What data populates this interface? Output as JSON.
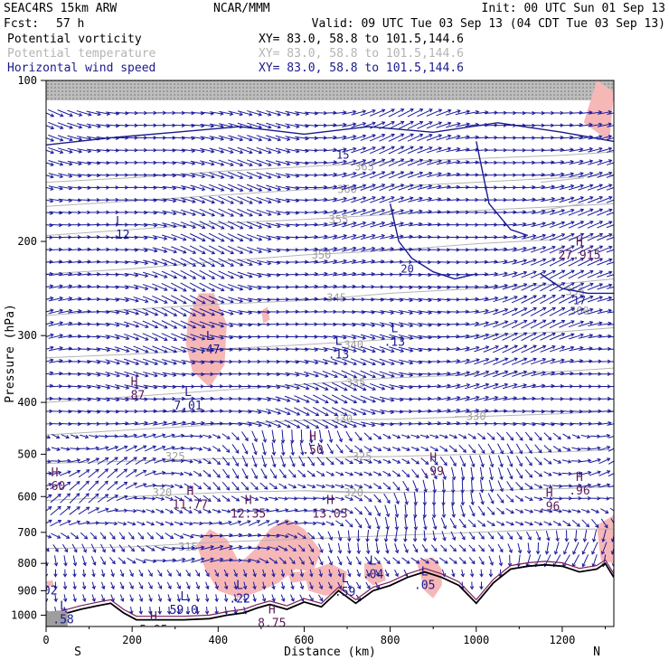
{
  "header": {
    "model": "SEAC4RS 15km ARW",
    "org": "NCAR/MMM",
    "init": "Init: 00 UTC Sun 01 Sep 13",
    "fcst_label": "Fcst:",
    "fcst_value": "57 h",
    "valid": "Valid: 09 UTC Tue 03 Sep 13 (04 CDT Tue 03 Sep 13)",
    "fields": [
      {
        "name": "Potential vorticity",
        "xy": "XY=  83.0, 58.8 to 101.5,144.6",
        "color": "#000000"
      },
      {
        "name": "Potential temperature",
        "xy": "XY=  83.0, 58.8 to 101.5,144.6",
        "color": "#b4b4b4"
      },
      {
        "name": "Horizontal wind speed",
        "xy": "XY=  83.0, 58.8 to 101.5,144.6",
        "color": "#1a1a8c"
      }
    ]
  },
  "chart_data": {
    "type": "cross-section",
    "xlabel": "Distance (km)",
    "ylabel": "Pressure (hPa)",
    "xlim": [
      0,
      1320
    ],
    "ylim": [
      100,
      1050
    ],
    "y_log": true,
    "x_ticks": [
      "0",
      "200",
      "400",
      "600",
      "800",
      "1000",
      "1200"
    ],
    "x_tick_values": [
      0,
      200,
      400,
      600,
      800,
      1000,
      1200
    ],
    "y_ticks": [
      "100",
      "200",
      "300",
      "400",
      "500",
      "600",
      "700",
      "800",
      "900",
      "1000"
    ],
    "y_tick_values": [
      100,
      200,
      300,
      400,
      500,
      600,
      700,
      800,
      900,
      1000
    ],
    "end_labels": {
      "left": "S",
      "right": "N"
    },
    "theta_contours": [
      {
        "label": "315",
        "points": [
          [
            0,
            750
          ],
          [
            200,
            745
          ],
          [
            400,
            730
          ],
          [
            600,
            720
          ],
          [
            800,
            710
          ],
          [
            1000,
            700
          ],
          [
            1200,
            690
          ],
          [
            1320,
            690
          ]
        ],
        "label_at": [
          330,
          745
        ]
      },
      {
        "label": "320",
        "points": [
          [
            0,
            610
          ],
          [
            200,
            600
          ],
          [
            400,
            590
          ],
          [
            600,
            585
          ],
          [
            800,
            590
          ],
          [
            1000,
            585
          ],
          [
            1200,
            580
          ],
          [
            1320,
            575
          ]
        ],
        "label_at": [
          270,
          590
        ]
      },
      {
        "label": "320",
        "points": [
          [
            600,
            585
          ],
          [
            700,
            590
          ],
          [
            800,
            590
          ]
        ],
        "label_at": [
          715,
          590
        ]
      },
      {
        "label": "325",
        "points": [
          [
            0,
            520
          ],
          [
            200,
            515
          ],
          [
            400,
            510
          ],
          [
            600,
            508
          ],
          [
            800,
            505
          ],
          [
            1000,
            500
          ],
          [
            1200,
            495
          ],
          [
            1320,
            490
          ]
        ],
        "label_at": [
          300,
          505
        ]
      },
      {
        "label": "325",
        "points": [
          [
            700,
            505
          ],
          [
            800,
            505
          ]
        ],
        "label_at": [
          735,
          505
        ]
      },
      {
        "label": "330",
        "points": [
          [
            0,
            460
          ],
          [
            200,
            450
          ],
          [
            400,
            440
          ],
          [
            600,
            432
          ],
          [
            800,
            430
          ],
          [
            1000,
            425
          ],
          [
            1200,
            420
          ],
          [
            1320,
            415
          ]
        ],
        "label_at": [
          690,
          430
        ]
      },
      {
        "label": "330",
        "points": [
          [
            950,
            425
          ],
          [
            1000,
            425
          ]
        ],
        "label_at": [
          1000,
          425
        ]
      },
      {
        "label": "335",
        "points": [
          [
            0,
            400
          ],
          [
            200,
            390
          ],
          [
            400,
            380
          ],
          [
            600,
            370
          ],
          [
            800,
            360
          ],
          [
            1000,
            355
          ],
          [
            1200,
            350
          ],
          [
            1320,
            345
          ]
        ],
        "label_at": [
          720,
          368
        ]
      },
      {
        "label": "340",
        "points": [
          [
            0,
            330
          ],
          [
            200,
            325
          ],
          [
            400,
            318
          ],
          [
            600,
            312
          ],
          [
            800,
            305
          ],
          [
            1000,
            300
          ],
          [
            1200,
            295
          ],
          [
            1320,
            290
          ]
        ],
        "label_at": [
          715,
          312
        ]
      },
      {
        "label": "345",
        "points": [
          [
            0,
            275
          ],
          [
            200,
            268
          ],
          [
            400,
            262
          ],
          [
            600,
            258
          ],
          [
            800,
            250
          ],
          [
            1000,
            245
          ],
          [
            1200,
            240
          ],
          [
            1320,
            235
          ]
        ],
        "label_at": [
          675,
          255
        ]
      },
      {
        "label": "350",
        "points": [
          [
            0,
            230
          ],
          [
            200,
            225
          ],
          [
            400,
            218
          ],
          [
            600,
            212
          ],
          [
            800,
            208
          ],
          [
            1000,
            202
          ],
          [
            1200,
            198
          ],
          [
            1320,
            195
          ]
        ],
        "label_at": [
          640,
          212
        ]
      },
      {
        "label": "355",
        "points": [
          [
            0,
            195
          ],
          [
            200,
            190
          ],
          [
            400,
            185
          ],
          [
            600,
            182
          ],
          [
            800,
            178
          ],
          [
            1000,
            175
          ],
          [
            1200,
            172
          ],
          [
            1320,
            170
          ]
        ],
        "label_at": [
          680,
          182
        ]
      },
      {
        "label": "360",
        "points": [
          [
            0,
            172
          ],
          [
            200,
            168
          ],
          [
            400,
            164
          ],
          [
            600,
            160
          ],
          [
            800,
            158
          ],
          [
            1000,
            155
          ],
          [
            1200,
            152
          ],
          [
            1320,
            150
          ]
        ],
        "label_at": [
          700,
          160
        ]
      },
      {
        "label": "365",
        "points": [
          [
            0,
            155
          ],
          [
            200,
            152
          ],
          [
            400,
            148
          ],
          [
            600,
            145
          ],
          [
            800,
            142
          ],
          [
            1000,
            140
          ],
          [
            1200,
            138
          ],
          [
            1320,
            136
          ]
        ],
        "label_at": [
          740,
          145
        ]
      },
      {
        "label": "355",
        "points": [
          [
            1150,
            175
          ],
          [
            1250,
            170
          ]
        ],
        "label_at": [
          1230,
          248
        ]
      },
      {
        "label": "360",
        "points": [
          [
            1150,
            155
          ],
          [
            1250,
            152
          ]
        ],
        "label_at": [
          1240,
          270
        ]
      }
    ],
    "speed_contours": [
      {
        "label": "15",
        "points": [
          [
            0,
            132
          ],
          [
            150,
            128
          ],
          [
            300,
            125
          ],
          [
            450,
            122
          ],
          [
            600,
            126
          ],
          [
            750,
            122
          ],
          [
            900,
            125
          ],
          [
            1050,
            120
          ],
          [
            1200,
            125
          ],
          [
            1320,
            130
          ]
        ],
        "label_at": [
          690,
          138
        ]
      },
      {
        "label": "20",
        "points": [
          [
            800,
            170
          ],
          [
            820,
            200
          ],
          [
            850,
            215
          ],
          [
            900,
            228
          ],
          [
            950,
            235
          ],
          [
            1000,
            230
          ]
        ],
        "label_at": [
          840,
          225
        ]
      },
      {
        "label": "17",
        "points": [
          [
            1150,
            230
          ],
          [
            1200,
            245
          ],
          [
            1260,
            250
          ],
          [
            1320,
            250
          ]
        ],
        "label_at": [
          1240,
          258
        ]
      },
      {
        "label": "",
        "points": [
          [
            1000,
            130
          ],
          [
            1030,
            170
          ],
          [
            1080,
            190
          ],
          [
            1120,
            195
          ]
        ],
        "label_at": null
      }
    ],
    "pv_positive_regions": [
      {
        "points": [
          [
            330,
            280
          ],
          [
            355,
            250
          ],
          [
            390,
            250
          ],
          [
            420,
            285
          ],
          [
            415,
            340
          ],
          [
            380,
            375
          ],
          [
            340,
            350
          ],
          [
            325,
            310
          ]
        ]
      },
      {
        "points": [
          [
            500,
            270
          ],
          [
            515,
            265
          ],
          [
            520,
            280
          ],
          [
            505,
            285
          ]
        ]
      },
      {
        "points": [
          [
            350,
            740
          ],
          [
            380,
            690
          ],
          [
            420,
            720
          ],
          [
            450,
            800
          ],
          [
            480,
            760
          ],
          [
            520,
            690
          ],
          [
            560,
            660
          ],
          [
            600,
            690
          ],
          [
            640,
            760
          ],
          [
            620,
            830
          ],
          [
            580,
            820
          ],
          [
            540,
            870
          ],
          [
            500,
            900
          ],
          [
            450,
            930
          ],
          [
            400,
            900
          ],
          [
            370,
            820
          ]
        ]
      },
      {
        "points": [
          [
            560,
            830
          ],
          [
            600,
            830
          ],
          [
            610,
            860
          ],
          [
            570,
            870
          ]
        ]
      },
      {
        "points": [
          [
            600,
            830
          ],
          [
            660,
            800
          ],
          [
            700,
            830
          ],
          [
            690,
            900
          ],
          [
            650,
            920
          ],
          [
            610,
            900
          ]
        ]
      },
      {
        "points": [
          [
            740,
            800
          ],
          [
            780,
            800
          ],
          [
            790,
            860
          ],
          [
            760,
            880
          ],
          [
            740,
            850
          ]
        ]
      },
      {
        "points": [
          [
            860,
            790
          ],
          [
            900,
            780
          ],
          [
            920,
            820
          ],
          [
            920,
            880
          ],
          [
            900,
            930
          ],
          [
            880,
            900
          ],
          [
            870,
            840
          ]
        ]
      },
      {
        "points": [
          [
            1280,
            680
          ],
          [
            1320,
            650
          ],
          [
            1320,
            800
          ],
          [
            1290,
            790
          ]
        ]
      },
      {
        "points": [
          [
            1250,
            120
          ],
          [
            1280,
            100
          ],
          [
            1320,
            105
          ],
          [
            1310,
            130
          ]
        ]
      },
      {
        "points": [
          [
            0,
            865
          ],
          [
            15,
            860
          ],
          [
            18,
            880
          ],
          [
            5,
            885
          ]
        ]
      }
    ],
    "terrain": {
      "points": [
        [
          0,
          1010
        ],
        [
          30,
          1000
        ],
        [
          80,
          975
        ],
        [
          120,
          960
        ],
        [
          150,
          950
        ],
        [
          180,
          990
        ],
        [
          210,
          1020
        ],
        [
          260,
          1020
        ],
        [
          320,
          1020
        ],
        [
          380,
          1015
        ],
        [
          420,
          1000
        ],
        [
          460,
          990
        ],
        [
          490,
          970
        ],
        [
          520,
          955
        ],
        [
          560,
          975
        ],
        [
          600,
          945
        ],
        [
          640,
          965
        ],
        [
          680,
          900
        ],
        [
          720,
          950
        ],
        [
          760,
          900
        ],
        [
          800,
          880
        ],
        [
          840,
          850
        ],
        [
          880,
          830
        ],
        [
          920,
          850
        ],
        [
          960,
          880
        ],
        [
          1000,
          950
        ],
        [
          1040,
          870
        ],
        [
          1080,
          820
        ],
        [
          1120,
          810
        ],
        [
          1160,
          805
        ],
        [
          1200,
          810
        ],
        [
          1240,
          830
        ],
        [
          1280,
          820
        ],
        [
          1300,
          800
        ],
        [
          1320,
          850
        ]
      ]
    },
    "extrema": [
      {
        "type": "L",
        "value": ".12",
        "x": 170,
        "p": 188
      },
      {
        "type": "L",
        "value": ".47",
        "x": 380,
        "p": 308
      },
      {
        "type": "H",
        "value": ".87",
        "x": 205,
        "p": 375
      },
      {
        "type": "L",
        "value": "7.01",
        "x": 330,
        "p": 392
      },
      {
        "type": "L",
        "value": ".13",
        "x": 680,
        "p": 315
      },
      {
        "type": "L",
        "value": ".13",
        "x": 810,
        "p": 298
      },
      {
        "type": "H",
        "value": ".50",
        "x": 620,
        "p": 475
      },
      {
        "type": "H",
        "value": ".99",
        "x": 900,
        "p": 520
      },
      {
        "type": "H",
        "value": ".60",
        "x": 20,
        "p": 555
      },
      {
        "type": "H",
        "value": ".96",
        "x": 1240,
        "p": 565
      },
      {
        "type": "H",
        "value": ".96",
        "x": 1170,
        "p": 605
      },
      {
        "type": "H",
        "value": "11.77",
        "x": 335,
        "p": 600
      },
      {
        "type": "H",
        "value": "12.35",
        "x": 470,
        "p": 625
      },
      {
        "type": "H",
        "value": "13.03",
        "x": 660,
        "p": 625
      },
      {
        "type": "L",
        "value": ".04",
        "x": 760,
        "p": 810
      },
      {
        "type": "L",
        "value": ".05",
        "x": 880,
        "p": 850
      },
      {
        "type": "L",
        "value": ".59",
        "x": 695,
        "p": 875
      },
      {
        "type": "L",
        "value": ".22",
        "x": 450,
        "p": 900
      },
      {
        "type": "L",
        "value": "59.0",
        "x": 320,
        "p": 945
      },
      {
        "type": "L",
        "value": ".58",
        "x": 40,
        "p": 985
      },
      {
        "type": "H",
        "value": "8.75",
        "x": 525,
        "p": 1000
      },
      {
        "type": "H",
        "value": "5.95",
        "x": 250,
        "p": 1030
      },
      {
        "type": "H",
        "value": "27.915",
        "x": 1240,
        "p": 205
      },
      {
        "type": "",
        "value": "02",
        "x": 10,
        "p": 870
      }
    ]
  }
}
